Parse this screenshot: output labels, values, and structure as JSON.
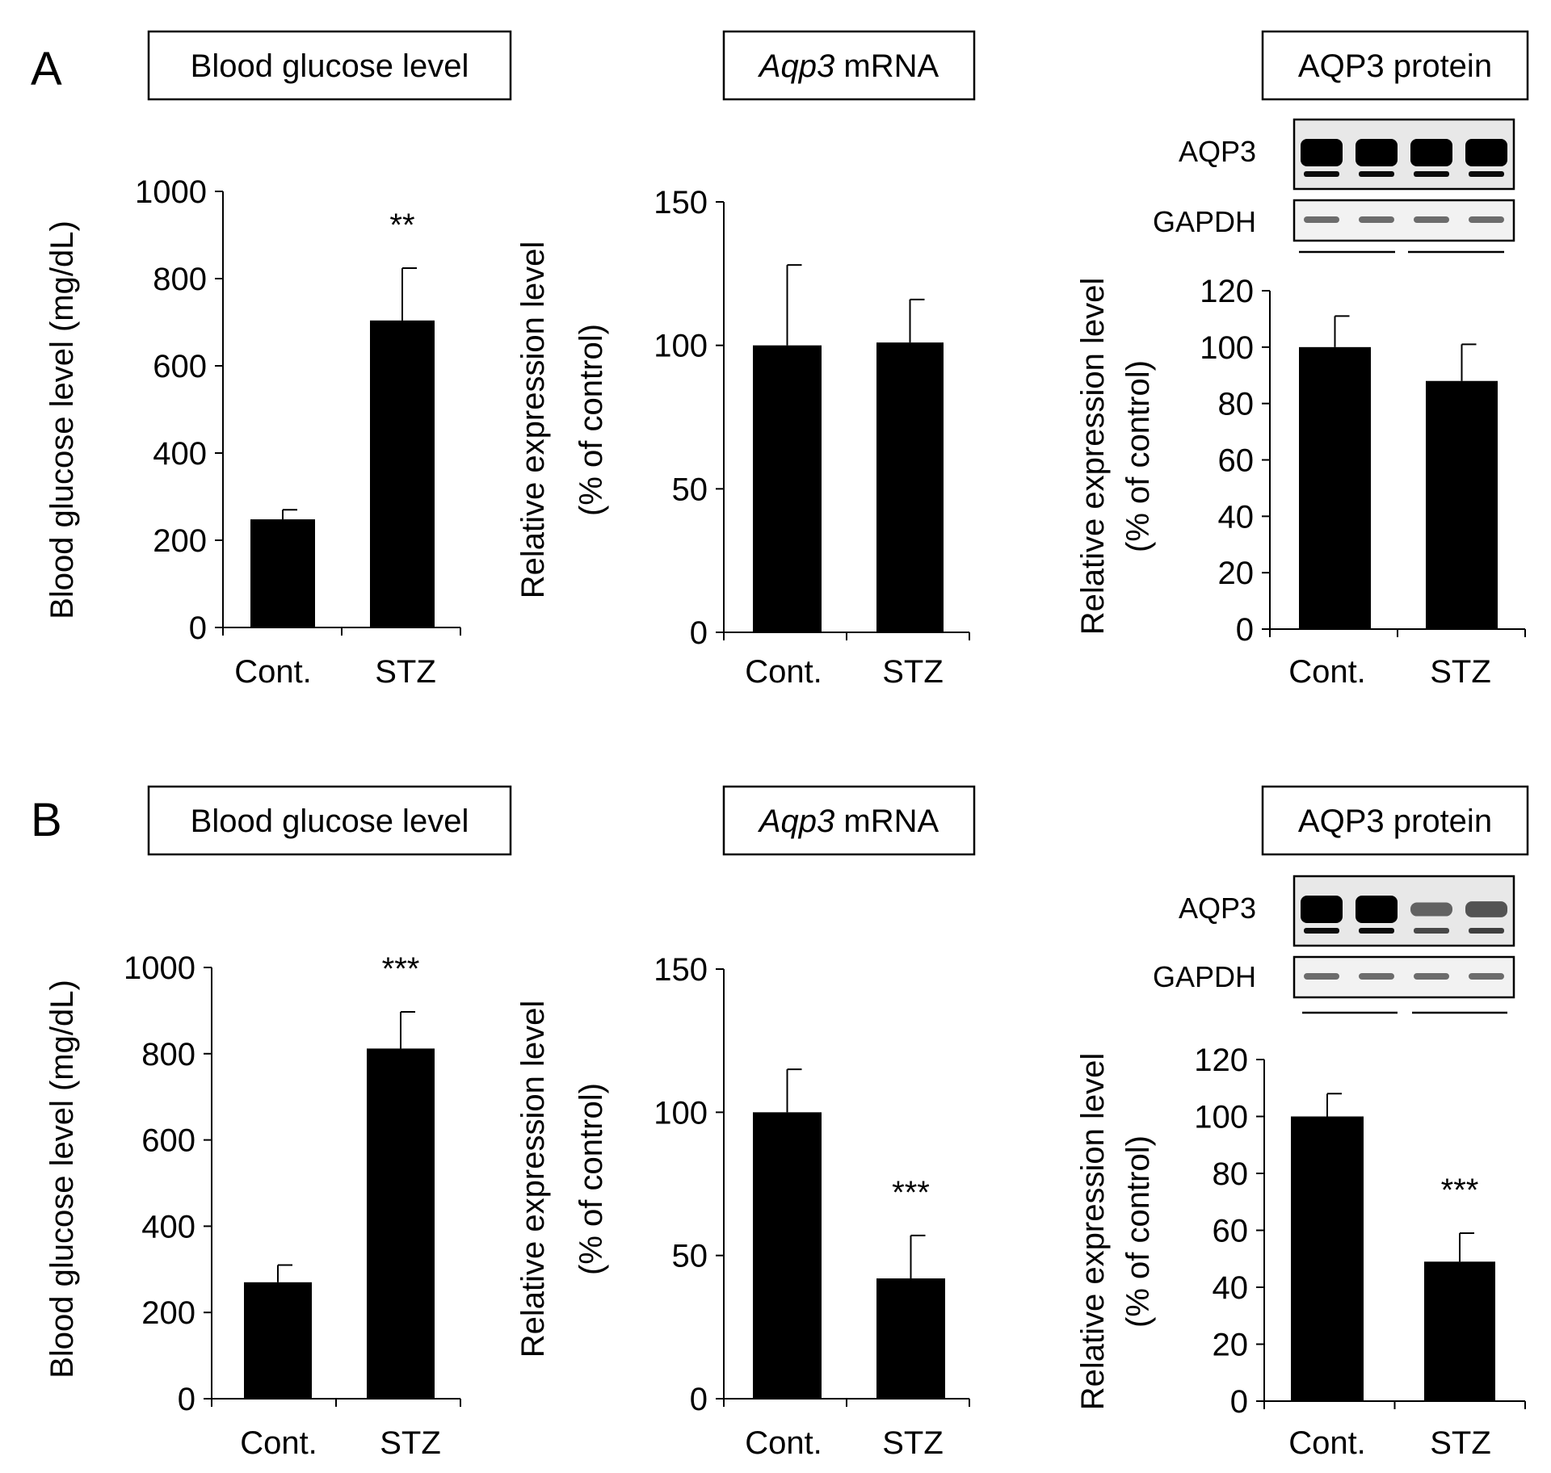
{
  "figure": {
    "panels": [
      {
        "id": "A",
        "letter": "A"
      },
      {
        "id": "B",
        "letter": "B"
      }
    ]
  },
  "chart_data": [
    {
      "panel": "A",
      "type": "bar",
      "title": "Blood glucose level",
      "ylabel": "Blood glucose level (mg/dL)",
      "ylabel2": "",
      "categories": [
        "Cont.",
        "STZ"
      ],
      "values": [
        248,
        704
      ],
      "errors": [
        22,
        120
      ],
      "significance": [
        "",
        "**"
      ],
      "ylim": [
        0,
        1000
      ],
      "yticks": [
        0,
        200,
        400,
        600,
        800,
        1000
      ],
      "grid": false
    },
    {
      "panel": "A",
      "type": "bar",
      "title": "Aqp3 mRNA",
      "title_italic": "Aqp3",
      "title_rest": " mRNA",
      "ylabel": "Relative expression level",
      "ylabel2": "(% of control)",
      "categories": [
        "Cont.",
        "STZ"
      ],
      "values": [
        100,
        101
      ],
      "errors": [
        28,
        15
      ],
      "significance": [
        "",
        ""
      ],
      "ylim": [
        0,
        150
      ],
      "yticks": [
        0,
        50,
        100,
        150
      ],
      "grid": false
    },
    {
      "panel": "A",
      "type": "bar",
      "title": "AQP3 protein",
      "ylabel": "Relative expression level",
      "ylabel2": "(% of control)",
      "categories": [
        "Cont.",
        "STZ"
      ],
      "values": [
        100,
        88
      ],
      "errors": [
        11,
        13
      ],
      "significance": [
        "",
        ""
      ],
      "ylim": [
        0,
        120
      ],
      "yticks": [
        0,
        20,
        40,
        60,
        80,
        100,
        120
      ],
      "grid": false,
      "blot": {
        "rows": [
          "AQP3",
          "GAPDH"
        ],
        "lanes": 4,
        "aqp3_intensity": [
          1,
          1,
          1,
          1
        ],
        "gapdh_intensity": [
          1,
          1,
          1,
          1
        ]
      }
    },
    {
      "panel": "B",
      "type": "bar",
      "title": "Blood glucose level",
      "ylabel": "Blood glucose level (mg/dL)",
      "ylabel2": "",
      "categories": [
        "Cont.",
        "STZ"
      ],
      "values": [
        270,
        812
      ],
      "errors": [
        40,
        85
      ],
      "significance": [
        "",
        "***"
      ],
      "ylim": [
        0,
        1000
      ],
      "yticks": [
        0,
        200,
        400,
        600,
        800,
        1000
      ],
      "grid": false
    },
    {
      "panel": "B",
      "type": "bar",
      "title": "Aqp3 mRNA",
      "title_italic": "Aqp3",
      "title_rest": " mRNA",
      "ylabel": "Relative expression level",
      "ylabel2": "(% of control)",
      "categories": [
        "Cont.",
        "STZ"
      ],
      "values": [
        100,
        42
      ],
      "errors": [
        15,
        15
      ],
      "significance": [
        "",
        "***"
      ],
      "ylim": [
        0,
        150
      ],
      "yticks": [
        0,
        50,
        100,
        150
      ],
      "grid": false
    },
    {
      "panel": "B",
      "type": "bar",
      "title": "AQP3 protein",
      "ylabel": "Relative expression level",
      "ylabel2": "(% of control)",
      "categories": [
        "Cont.",
        "STZ"
      ],
      "values": [
        100,
        49
      ],
      "errors": [
        8,
        10
      ],
      "significance": [
        "",
        "***"
      ],
      "ylim": [
        0,
        120
      ],
      "yticks": [
        0,
        20,
        40,
        60,
        80,
        100,
        120
      ],
      "grid": false,
      "blot": {
        "rows": [
          "AQP3",
          "GAPDH"
        ],
        "lanes": 4,
        "aqp3_intensity": [
          1,
          1,
          0.35,
          0.45
        ],
        "gapdh_intensity": [
          1,
          1,
          1,
          1
        ]
      }
    }
  ]
}
